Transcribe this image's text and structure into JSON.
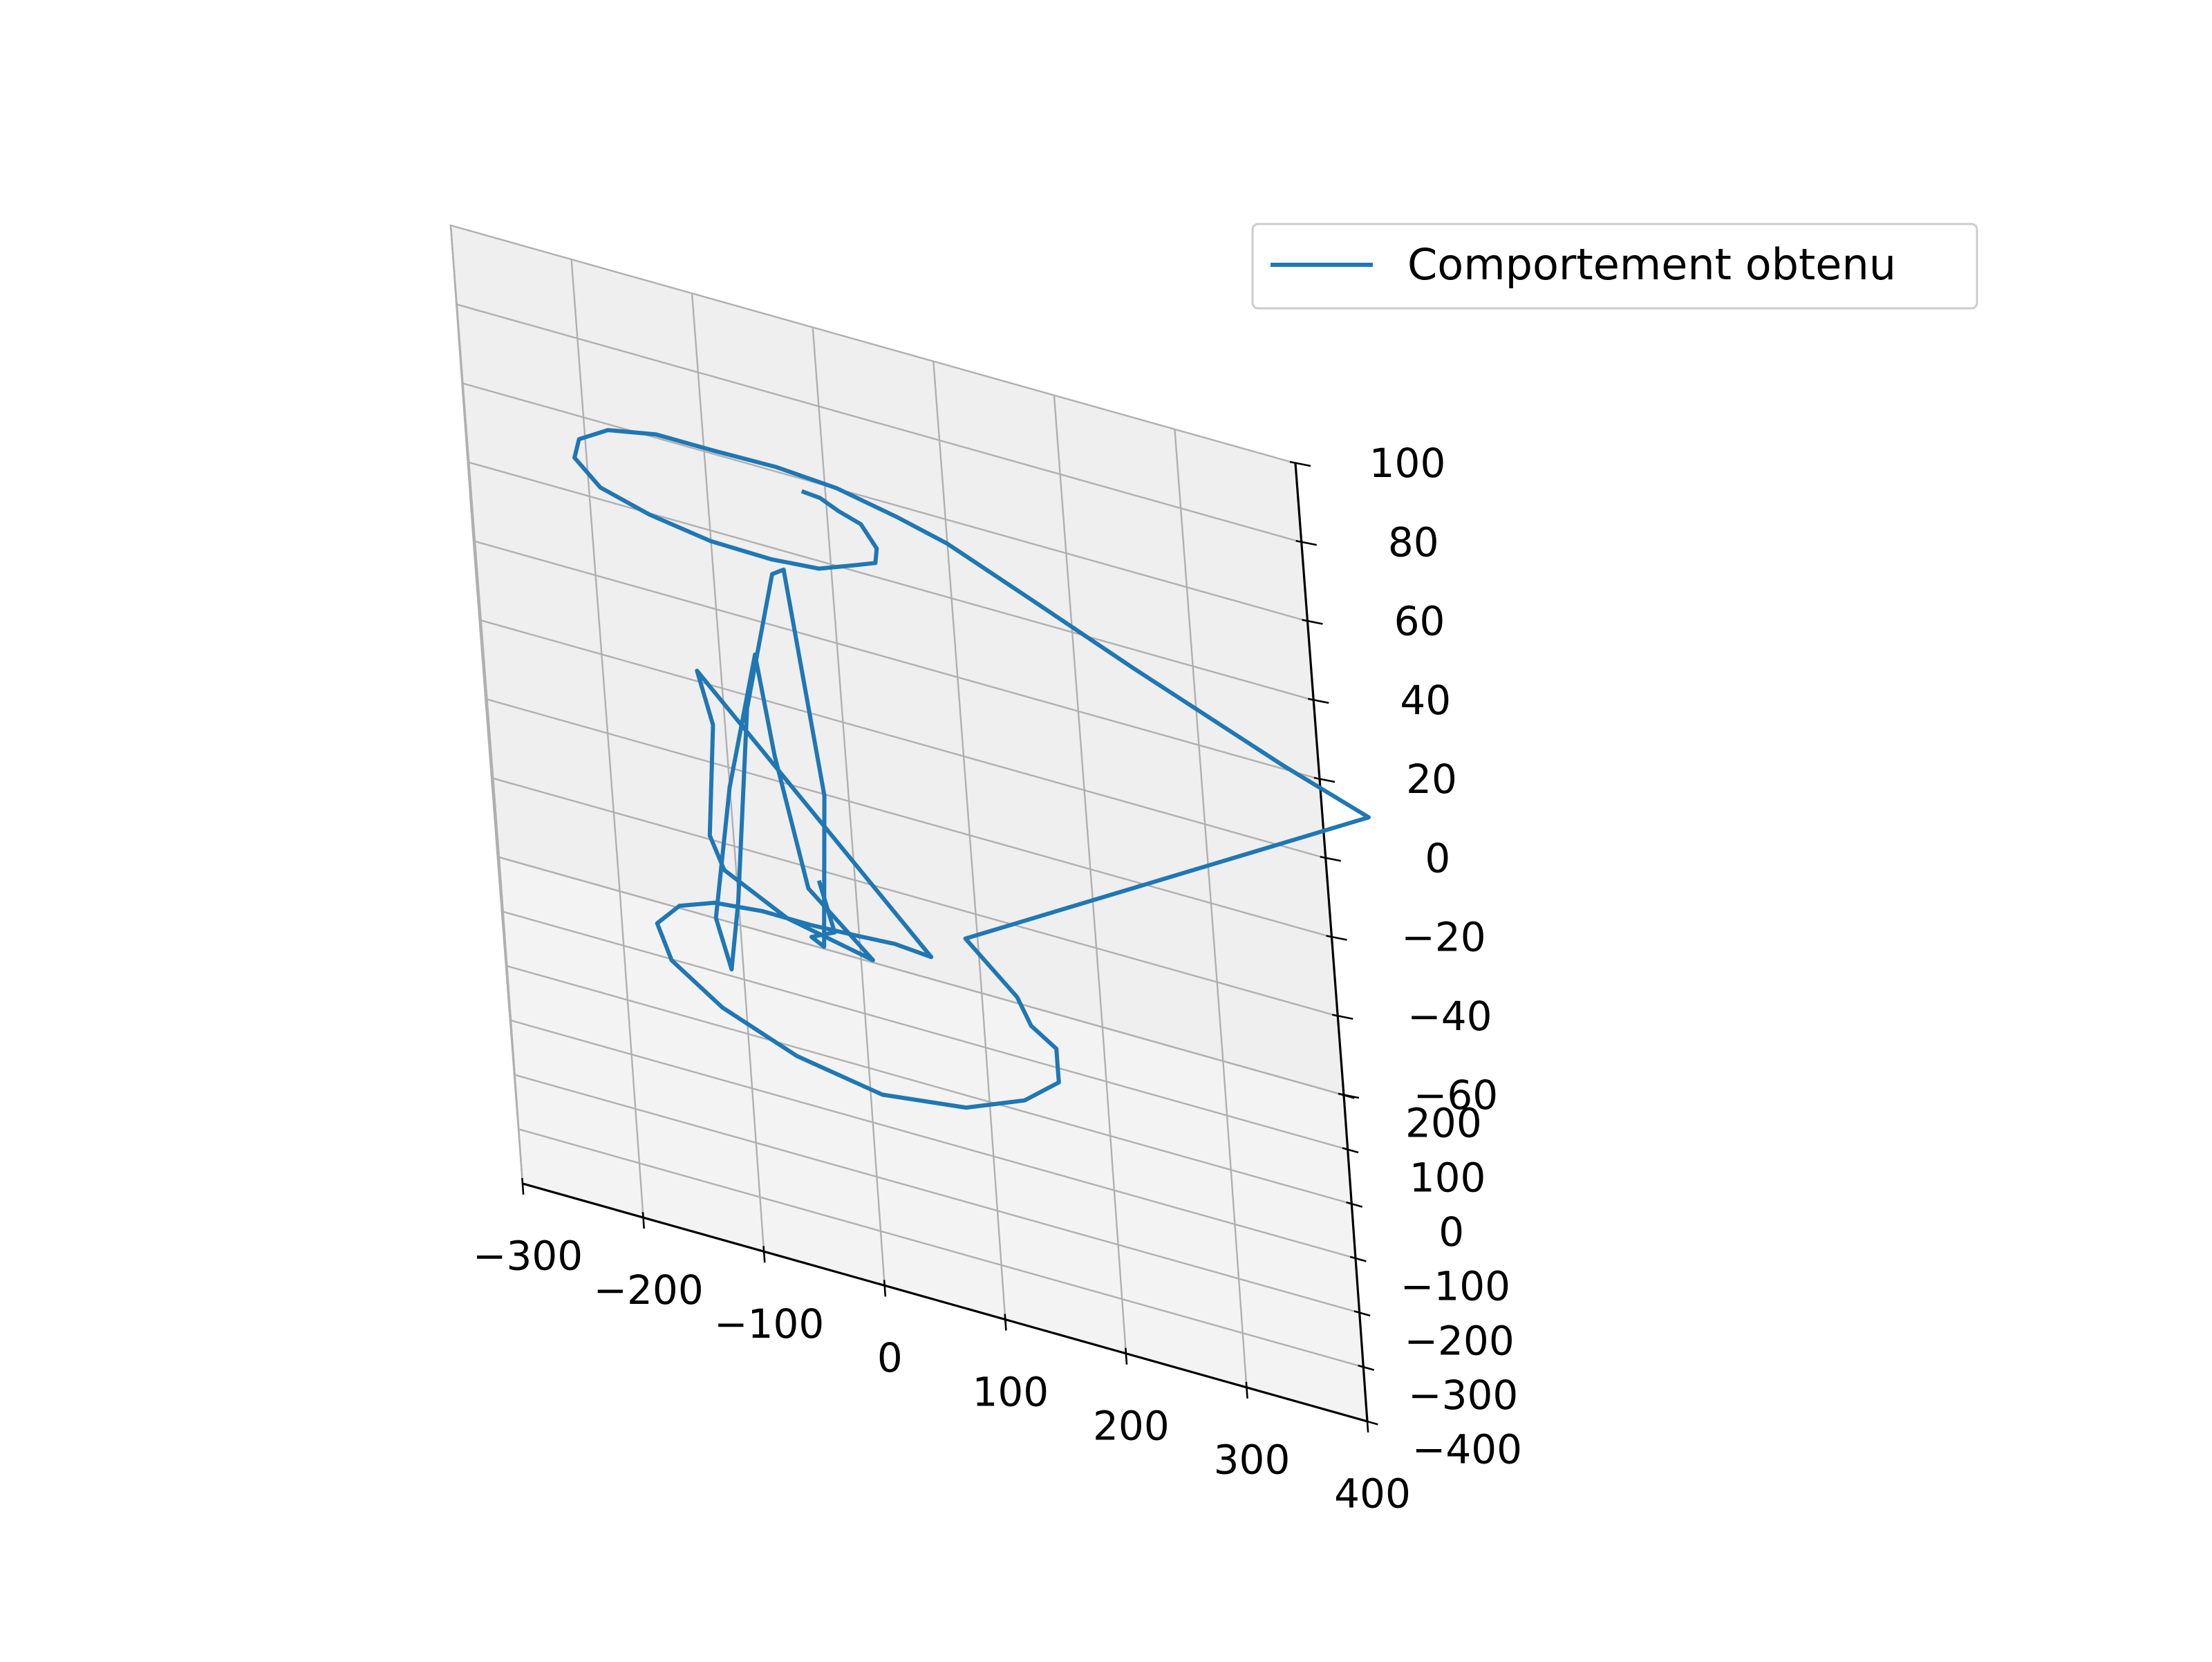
{
  "chart_data": {
    "type": "line",
    "projection": "3d",
    "legend_placement": "upper-right",
    "grid": true,
    "xlim": [
      -300,
      400
    ],
    "ylim": [
      -400,
      200
    ],
    "zlim": [
      -60,
      100
    ],
    "x_ticks": [
      "−300",
      "−200",
      "−100",
      "0",
      "100",
      "200",
      "300",
      "400"
    ],
    "y_ticks": [
      "−400",
      "−300",
      "−200",
      "−100",
      "0",
      "100",
      "200"
    ],
    "z_ticks": [
      "−60",
      "−40",
      "−20",
      "0",
      "20",
      "40",
      "60",
      "80",
      "100"
    ],
    "series": [
      {
        "name": "Comportement obtenu",
        "color": "#1f77b4",
        "points": [
          [
            -20,
            220,
            54
          ],
          [
            -5,
            210,
            55
          ],
          [
            10,
            195,
            55
          ],
          [
            28,
            175,
            56
          ],
          [
            40,
            145,
            55
          ],
          [
            38,
            110,
            56
          ],
          [
            20,
            80,
            58
          ],
          [
            -10,
            55,
            58
          ],
          [
            -50,
            40,
            59
          ],
          [
            -100,
            35,
            60
          ],
          [
            -150,
            45,
            61
          ],
          [
            -190,
            70,
            61
          ],
          [
            -210,
            105,
            62
          ],
          [
            -205,
            135,
            63
          ],
          [
            -180,
            160,
            64
          ],
          [
            -140,
            170,
            65
          ],
          [
            -90,
            170,
            65
          ],
          [
            -40,
            165,
            66
          ],
          [
            10,
            150,
            67
          ],
          [
            60,
            120,
            68
          ],
          [
            100,
            90,
            69
          ],
          [
            170,
            20,
            70
          ],
          [
            250,
            -60,
            71
          ],
          [
            370,
            -170,
            72
          ],
          [
            440,
            -230,
            73
          ],
          [
            90,
            40,
            -25
          ],
          [
            130,
            30,
            -35
          ],
          [
            140,
            20,
            -40
          ],
          [
            160,
            -10,
            -40
          ],
          [
            160,
            -50,
            -43
          ],
          [
            130,
            -80,
            -46
          ],
          [
            80,
            -110,
            -48
          ],
          [
            10,
            -130,
            -48
          ],
          [
            -60,
            -110,
            -47
          ],
          [
            -120,
            -80,
            -44
          ],
          [
            -160,
            -40,
            -41
          ],
          [
            -170,
            0,
            -38
          ],
          [
            -150,
            30,
            -36
          ],
          [
            -120,
            40,
            -34
          ],
          [
            -80,
            35,
            -32
          ],
          [
            -40,
            20,
            -30
          ],
          [
            0,
            10,
            -28
          ],
          [
            30,
            0,
            -26
          ],
          [
            60,
            -20,
            -24
          ],
          [
            -120,
            60,
            22
          ],
          [
            -110,
            90,
            5
          ],
          [
            -120,
            120,
            -28
          ],
          [
            -110,
            150,
            -40
          ],
          [
            -60,
            180,
            -52
          ],
          [
            10,
            190,
            -58
          ],
          [
            -40,
            160,
            -40
          ],
          [
            -60,
            160,
            -8
          ],
          [
            -70,
            150,
            18
          ],
          [
            -100,
            90,
            -10
          ],
          [
            -120,
            70,
            -42
          ],
          [
            -110,
            40,
            -50
          ],
          [
            -100,
            40,
            -32
          ],
          [
            -80,
            30,
            20
          ],
          [
            -50,
            20,
            58
          ],
          [
            -40,
            20,
            60
          ],
          [
            -20,
            -20,
            10
          ],
          [
            -30,
            -50,
            -25
          ],
          [
            -40,
            -60,
            -22
          ],
          [
            -20,
            -90,
            -15
          ],
          [
            -30,
            -110,
            0
          ]
        ]
      }
    ]
  }
}
